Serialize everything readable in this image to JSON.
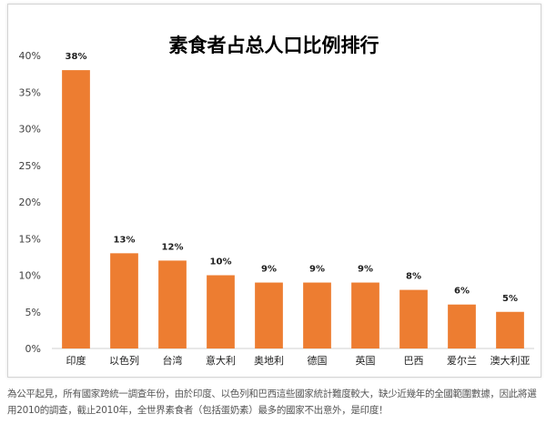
{
  "chart_data": {
    "type": "bar",
    "title": "素食者占总人口比例排行",
    "categories": [
      "印度",
      "以色列",
      "台湾",
      "意大利",
      "奥地利",
      "德国",
      "英国",
      "巴西",
      "爱尔兰",
      "澳大利亚"
    ],
    "values": [
      38,
      13,
      12,
      10,
      9,
      9,
      9,
      8,
      6,
      5
    ],
    "data_labels": [
      "38%",
      "13%",
      "12%",
      "10%",
      "9%",
      "9%",
      "9%",
      "8%",
      "6%",
      "5%"
    ],
    "ylim": [
      0,
      40
    ],
    "yticks": [
      0,
      5,
      10,
      15,
      20,
      25,
      30,
      35,
      40
    ],
    "ytick_labels": [
      "0%",
      "5%",
      "10%",
      "15%",
      "20%",
      "25%",
      "30%",
      "35%",
      "40%"
    ],
    "grid": false,
    "bar_color": "#ED7D31"
  },
  "caption": "為公平起見，所有國家跨統一調查年份，由於印度、以色列和巴西這些國家統計難度較大，缺少近幾年的全國範圍數據，因此將選用2010的調查，截止2010年，全世界素食者（包括蛋奶素）最多的國家不出意外，是印度！"
}
